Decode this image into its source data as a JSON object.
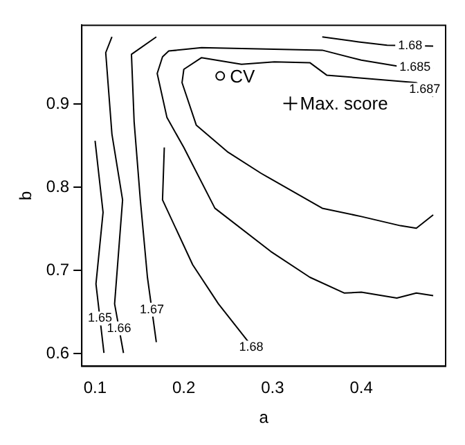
{
  "chart_data": {
    "type": "line",
    "xlabel": "a",
    "ylabel": "b",
    "xlim": [
      0.085,
      0.495
    ],
    "ylim": [
      0.585,
      0.995
    ],
    "xticks": [
      0.1,
      0.2,
      0.3,
      0.4
    ],
    "yticks": [
      0.6,
      0.7,
      0.8,
      0.9
    ],
    "grid": false,
    "legend": false,
    "line_style": "solid",
    "series": [
      {
        "name": "1.65",
        "color": "#000000",
        "marker": "none",
        "x": [
          0.1,
          0.109,
          0.101,
          0.11
        ],
        "values": [
          0.856,
          0.77,
          0.684,
          0.601
        ]
      },
      {
        "name": "1.66",
        "color": "#000000",
        "marker": "none",
        "x": [
          0.119,
          0.112,
          0.119,
          0.131,
          0.122,
          0.132
        ],
        "values": [
          0.981,
          0.962,
          0.864,
          0.785,
          0.66,
          0.601
        ]
      },
      {
        "name": "1.67",
        "color": "#000000",
        "marker": "none",
        "x": [
          0.169,
          0.141,
          0.144,
          0.151,
          0.159,
          0.169
        ],
        "values": [
          0.981,
          0.96,
          0.879,
          0.785,
          0.692,
          0.614
        ]
      },
      {
        "name": "1.68",
        "color": "#000000",
        "marker": "none",
        "x": [
          0.178,
          0.176,
          0.21,
          0.239,
          0.273,
          0.279,
          null,
          0.356,
          0.397,
          0.429,
          0.481
        ],
        "values": [
          0.848,
          0.785,
          0.707,
          0.66,
          0.614,
          0.601,
          null,
          0.981,
          0.975,
          0.971,
          0.97
        ]
      },
      {
        "name": "1.685",
        "color": "#000000",
        "marker": "none",
        "x": [
          0.481,
          0.462,
          0.44,
          0.4,
          0.381,
          0.342,
          0.298,
          0.235,
          0.2,
          0.181,
          0.17,
          0.176,
          0.183,
          0.22,
          0.356,
          0.4,
          0.44,
          0.481
        ],
        "values": [
          0.67,
          0.673,
          0.667,
          0.674,
          0.673,
          0.692,
          0.723,
          0.775,
          0.848,
          0.884,
          0.937,
          0.957,
          0.964,
          0.968,
          0.965,
          0.953,
          0.946,
          0.943
        ]
      },
      {
        "name": "1.687",
        "color": "#000000",
        "marker": "none",
        "x": [
          0.481,
          0.462,
          0.444,
          0.4,
          0.356,
          0.287,
          0.249,
          0.214,
          0.198,
          0.2,
          0.22,
          0.265,
          0.302,
          0.342,
          0.361,
          0.462,
          0.481
        ],
        "values": [
          0.767,
          0.751,
          0.754,
          0.765,
          0.775,
          0.817,
          0.843,
          0.875,
          0.926,
          0.942,
          0.956,
          0.948,
          0.951,
          0.95,
          0.935,
          0.926,
          0.909
        ]
      },
      {
        "name": "CV",
        "type": "scatter",
        "color": "#000000",
        "marker": "circle",
        "x": [
          0.241
        ],
        "values": [
          0.934
        ]
      },
      {
        "name": "Max. score",
        "type": "scatter",
        "color": "#000000",
        "marker": "cross",
        "x": [
          0.32
        ],
        "values": [
          0.901
        ]
      }
    ]
  }
}
